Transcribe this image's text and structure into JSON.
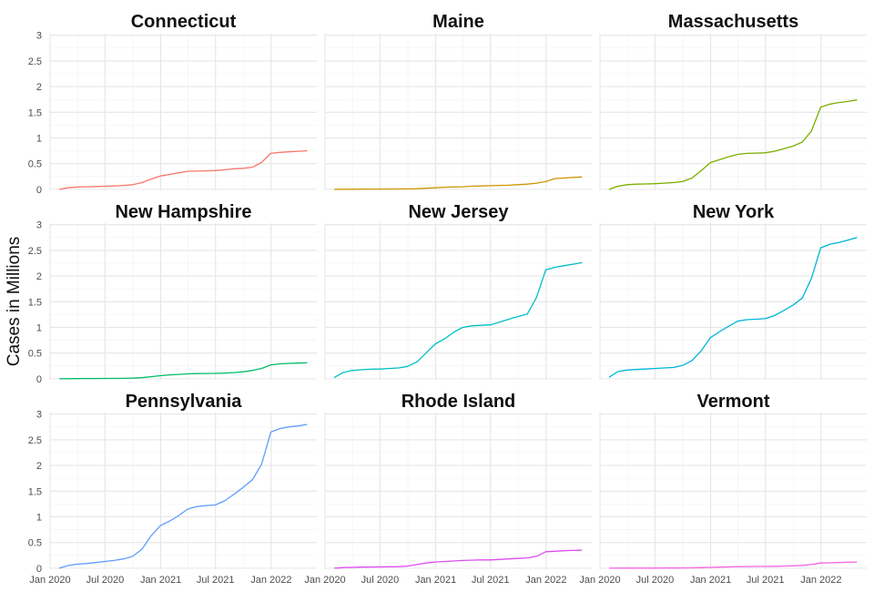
{
  "chart_data": {
    "type": "line",
    "ylabel": "Cases in Millions",
    "ylim": [
      0,
      3
    ],
    "y_ticks": [
      0,
      0.5,
      1,
      1.5,
      2,
      2.5,
      3
    ],
    "y_tick_labels": [
      "0",
      "0.5",
      "1",
      "1.5",
      "2",
      "2.5",
      "3"
    ],
    "x_ticks": [
      "2020-01-01",
      "2020-07-01",
      "2021-01-01",
      "2021-07-01",
      "2022-01-01"
    ],
    "x_tick_labels": [
      "Jan 2020",
      "Jul 2020",
      "Jan 2021",
      "Jul 2021",
      "Jan 2022"
    ],
    "x_range": [
      "2020-01-01",
      "2022-06-01"
    ],
    "grid": true,
    "legend": "none",
    "x": [
      "2020-01-31",
      "2020-02-29",
      "2020-03-31",
      "2020-04-30",
      "2020-05-31",
      "2020-06-30",
      "2020-07-31",
      "2020-08-31",
      "2020-09-30",
      "2020-10-31",
      "2020-11-30",
      "2020-12-31",
      "2021-01-31",
      "2021-02-28",
      "2021-03-31",
      "2021-04-30",
      "2021-05-31",
      "2021-06-30",
      "2021-07-31",
      "2021-08-31",
      "2021-09-30",
      "2021-10-31",
      "2021-11-30",
      "2021-12-31",
      "2022-01-31",
      "2022-02-28",
      "2022-03-31",
      "2022-04-30"
    ],
    "series": [
      {
        "name": "Connecticut",
        "color": "#F8766D",
        "values": [
          0.0,
          0.03,
          0.045,
          0.05,
          0.055,
          0.06,
          0.065,
          0.075,
          0.09,
          0.13,
          0.2,
          0.26,
          0.29,
          0.32,
          0.35,
          0.355,
          0.36,
          0.365,
          0.38,
          0.4,
          0.41,
          0.43,
          0.52,
          0.7,
          0.72,
          0.73,
          0.74,
          0.75
        ]
      },
      {
        "name": "Maine",
        "color": "#CD9600",
        "values": [
          0.0,
          0.001,
          0.002,
          0.003,
          0.004,
          0.005,
          0.006,
          0.007,
          0.008,
          0.012,
          0.02,
          0.03,
          0.04,
          0.045,
          0.05,
          0.06,
          0.065,
          0.07,
          0.075,
          0.08,
          0.09,
          0.1,
          0.12,
          0.15,
          0.21,
          0.22,
          0.23,
          0.24
        ]
      },
      {
        "name": "Massachusetts",
        "color": "#7CAE00",
        "values": [
          0.0,
          0.06,
          0.09,
          0.1,
          0.105,
          0.11,
          0.12,
          0.13,
          0.15,
          0.22,
          0.36,
          0.52,
          0.58,
          0.63,
          0.68,
          0.7,
          0.705,
          0.71,
          0.74,
          0.79,
          0.84,
          0.92,
          1.13,
          1.6,
          1.66,
          1.69,
          1.71,
          1.74
        ]
      },
      {
        "name": "New Hampshire",
        "color": "#00BE67",
        "values": [
          0.0,
          0.002,
          0.003,
          0.004,
          0.005,
          0.006,
          0.007,
          0.009,
          0.012,
          0.02,
          0.04,
          0.06,
          0.075,
          0.085,
          0.095,
          0.1,
          0.102,
          0.105,
          0.11,
          0.12,
          0.135,
          0.16,
          0.2,
          0.27,
          0.29,
          0.3,
          0.305,
          0.31
        ]
      },
      {
        "name": "New Jersey",
        "color": "#00BFC4",
        "values": [
          0.02,
          0.12,
          0.16,
          0.175,
          0.185,
          0.19,
          0.2,
          0.21,
          0.24,
          0.33,
          0.5,
          0.68,
          0.78,
          0.9,
          1.0,
          1.03,
          1.04,
          1.05,
          1.1,
          1.16,
          1.21,
          1.26,
          1.58,
          2.12,
          2.17,
          2.2,
          2.23,
          2.26
        ]
      },
      {
        "name": "New York",
        "color": "#00B4D8",
        "values": [
          0.03,
          0.14,
          0.17,
          0.18,
          0.19,
          0.2,
          0.21,
          0.22,
          0.26,
          0.35,
          0.54,
          0.8,
          0.92,
          1.02,
          1.12,
          1.15,
          1.16,
          1.17,
          1.23,
          1.33,
          1.43,
          1.57,
          1.95,
          2.55,
          2.62,
          2.65,
          2.7,
          2.75
        ]
      },
      {
        "name": "Pennsylvania",
        "color": "#619CFF",
        "values": [
          0.0,
          0.05,
          0.08,
          0.09,
          0.11,
          0.13,
          0.15,
          0.18,
          0.23,
          0.37,
          0.63,
          0.83,
          0.92,
          1.02,
          1.15,
          1.2,
          1.22,
          1.23,
          1.31,
          1.44,
          1.57,
          1.72,
          2.02,
          2.65,
          2.72,
          2.75,
          2.77,
          2.8
        ]
      },
      {
        "name": "Rhode Island",
        "color": "#DE4CF0",
        "values": [
          0.0,
          0.01,
          0.015,
          0.02,
          0.022,
          0.025,
          0.028,
          0.03,
          0.04,
          0.07,
          0.1,
          0.12,
          0.13,
          0.14,
          0.15,
          0.155,
          0.16,
          0.16,
          0.17,
          0.18,
          0.19,
          0.2,
          0.23,
          0.32,
          0.33,
          0.34,
          0.345,
          0.35
        ]
      },
      {
        "name": "Vermont",
        "color": "#F564E3",
        "values": [
          0.0,
          0.001,
          0.001,
          0.002,
          0.002,
          0.002,
          0.003,
          0.003,
          0.004,
          0.006,
          0.01,
          0.015,
          0.02,
          0.025,
          0.03,
          0.032,
          0.033,
          0.034,
          0.036,
          0.04,
          0.045,
          0.055,
          0.07,
          0.1,
          0.105,
          0.11,
          0.115,
          0.12
        ]
      }
    ]
  }
}
